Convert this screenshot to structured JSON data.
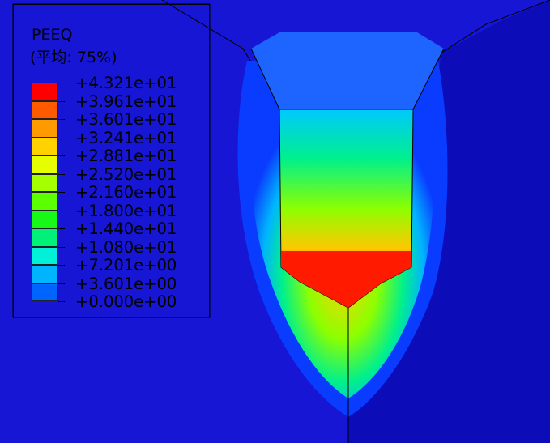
{
  "legend": {
    "title": "PEEQ",
    "subtitle": "(平均: 75%)",
    "entries": [
      {
        "label": "+4.321e+01",
        "color": "#ff0000"
      },
      {
        "label": "+3.961e+01",
        "color": "#ff5a00"
      },
      {
        "label": "+3.601e+01",
        "color": "#ff9a00"
      },
      {
        "label": "+3.241e+01",
        "color": "#ffd200"
      },
      {
        "label": "+2.881e+01",
        "color": "#e6ff00"
      },
      {
        "label": "+2.520e+01",
        "color": "#a6ff00"
      },
      {
        "label": "+2.160e+01",
        "color": "#5cff00"
      },
      {
        "label": "+1.800e+01",
        "color": "#18f818"
      },
      {
        "label": "+1.440e+01",
        "color": "#00f07a"
      },
      {
        "label": "+1.080e+01",
        "color": "#00f0d8"
      },
      {
        "label": "+7.201e+00",
        "color": "#00b4ff"
      },
      {
        "label": "+3.601e+00",
        "color": "#0064ff"
      },
      {
        "label": "+0.000e+00",
        "color": "#0a0aff"
      }
    ]
  }
}
